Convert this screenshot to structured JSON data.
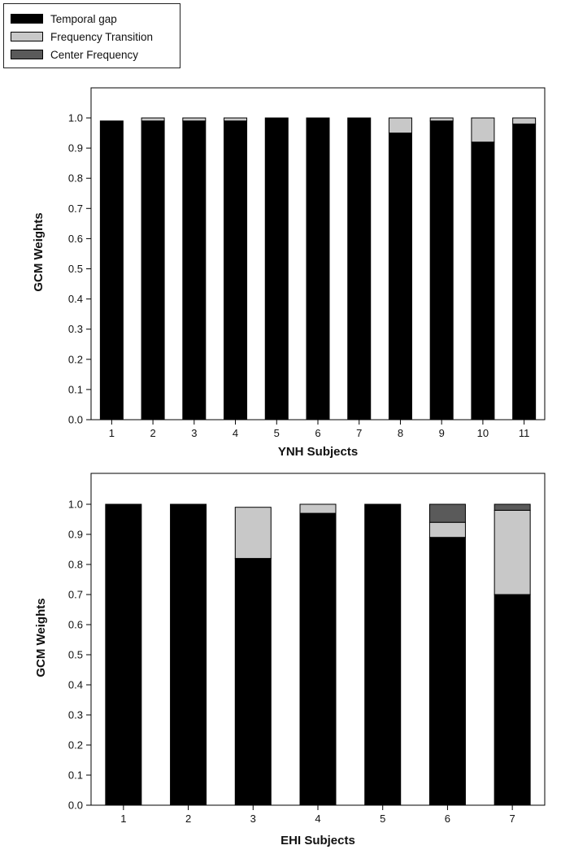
{
  "legend": {
    "items": [
      {
        "label": "Temporal gap",
        "color": "#000000"
      },
      {
        "label": "Frequency Transition",
        "color": "#c8c8c8"
      },
      {
        "label": "Center Frequency",
        "color": "#5a5a5a"
      }
    ]
  },
  "chart_data": [
    {
      "type": "bar",
      "stacked": true,
      "xlabel": "YNH Subjects",
      "ylabel": "GCM Weights",
      "ylim": [
        0,
        1.05
      ],
      "yticks": [
        "0.0",
        "0.1",
        "0.2",
        "0.3",
        "0.4",
        "0.5",
        "0.6",
        "0.7",
        "0.8",
        "0.9",
        "1.0"
      ],
      "categories": [
        "1",
        "2",
        "3",
        "4",
        "5",
        "6",
        "7",
        "8",
        "9",
        "10",
        "11"
      ],
      "series": [
        {
          "name": "Temporal gap",
          "color": "#000000",
          "values": [
            0.99,
            0.99,
            0.99,
            0.99,
            1.0,
            1.0,
            1.0,
            0.95,
            0.99,
            0.92,
            0.98
          ]
        },
        {
          "name": "Frequency Transition",
          "color": "#c8c8c8",
          "values": [
            0.0,
            0.01,
            0.01,
            0.01,
            0.0,
            0.0,
            0.0,
            0.05,
            0.01,
            0.08,
            0.02
          ]
        },
        {
          "name": "Center Frequency",
          "color": "#5a5a5a",
          "values": [
            0,
            0,
            0,
            0,
            0,
            0,
            0,
            0,
            0,
            0,
            0
          ]
        }
      ],
      "grid": false
    },
    {
      "type": "bar",
      "stacked": true,
      "xlabel": "EHI Subjects",
      "ylabel": "GCM Weights",
      "ylim": [
        0,
        1.05
      ],
      "yticks": [
        "0.0",
        "0.1",
        "0.2",
        "0.3",
        "0.4",
        "0.5",
        "0.6",
        "0.7",
        "0.8",
        "0.9",
        "1.0"
      ],
      "categories": [
        "1",
        "2",
        "3",
        "4",
        "5",
        "6",
        "7"
      ],
      "series": [
        {
          "name": "Temporal gap",
          "color": "#000000",
          "values": [
            1.0,
            1.0,
            0.82,
            0.97,
            1.0,
            0.89,
            0.7
          ]
        },
        {
          "name": "Frequency Transition",
          "color": "#c8c8c8",
          "values": [
            0.0,
            0.0,
            0.17,
            0.03,
            0.0,
            0.05,
            0.28
          ]
        },
        {
          "name": "Center Frequency",
          "color": "#5a5a5a",
          "values": [
            0,
            0,
            0,
            0,
            0,
            0.06,
            0.02
          ]
        }
      ],
      "grid": false
    }
  ]
}
